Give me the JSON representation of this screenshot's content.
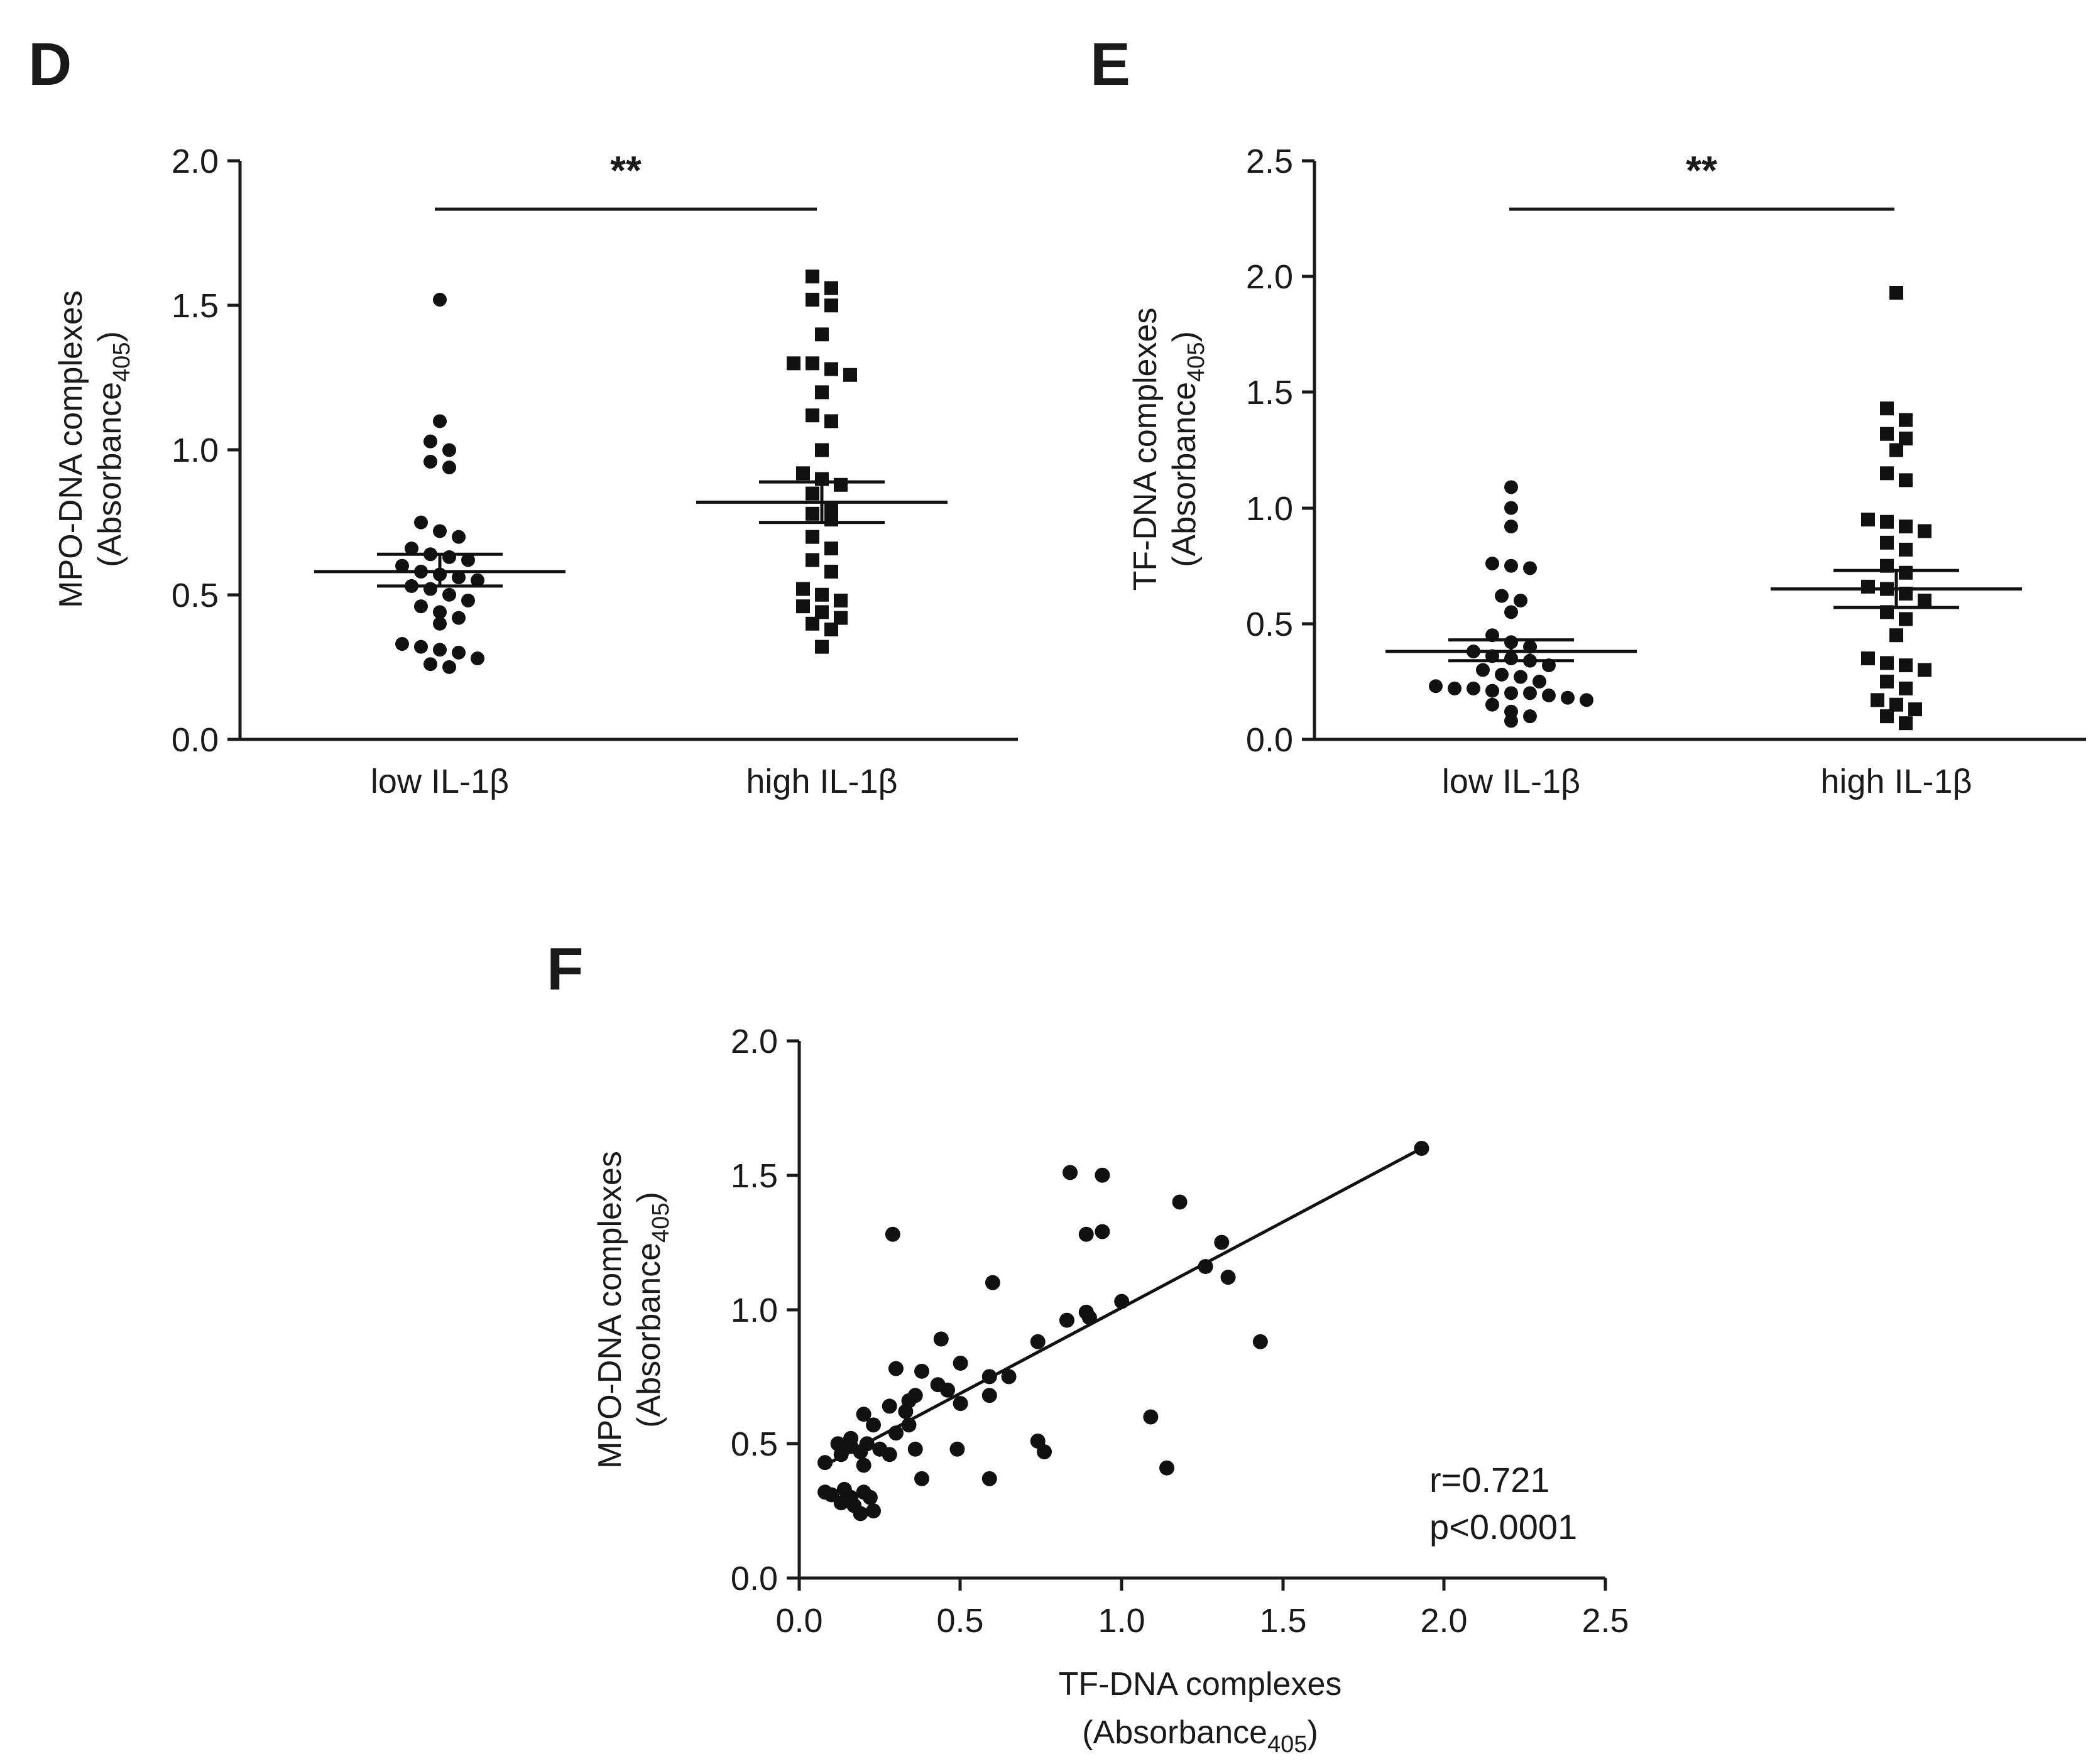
{
  "chart_data": [
    {
      "panel": "D",
      "type": "scatter",
      "subtype": "dot-plot-with-mean-sem",
      "title": "",
      "ylabel_line1": "MPO-DNA complexes",
      "ylabel_line2": "(Absorbance",
      "ylabel_sub": "405",
      "ylabel_close": ")",
      "ylim": [
        0,
        2.0
      ],
      "yticks": [
        "0.0",
        "0.5",
        "1.0",
        "1.5",
        "2.0"
      ],
      "categories": [
        "low IL-1β",
        "high IL-1β"
      ],
      "significance": "**",
      "series": [
        {
          "name": "low IL-1β",
          "marker": "circle",
          "values": [
            1.52,
            1.1,
            1.03,
            1.0,
            0.96,
            0.94,
            0.75,
            0.72,
            0.7,
            0.66,
            0.64,
            0.63,
            0.62,
            0.6,
            0.58,
            0.57,
            0.56,
            0.55,
            0.53,
            0.52,
            0.5,
            0.48,
            0.46,
            0.44,
            0.42,
            0.4,
            0.33,
            0.32,
            0.31,
            0.3,
            0.28,
            0.26,
            0.25
          ],
          "mean": 0.58,
          "sem_low": 0.53,
          "sem_high": 0.64
        },
        {
          "name": "high IL-1β",
          "marker": "square",
          "values": [
            1.6,
            1.56,
            1.52,
            1.5,
            1.4,
            1.3,
            1.3,
            1.28,
            1.26,
            1.2,
            1.12,
            1.1,
            1.0,
            0.92,
            0.9,
            0.88,
            0.85,
            0.8,
            0.78,
            0.76,
            0.7,
            0.66,
            0.62,
            0.58,
            0.52,
            0.5,
            0.48,
            0.46,
            0.44,
            0.42,
            0.4,
            0.38,
            0.32
          ],
          "mean": 0.82,
          "sem_low": 0.75,
          "sem_high": 0.89
        }
      ]
    },
    {
      "panel": "E",
      "type": "scatter",
      "subtype": "dot-plot-with-mean-sem",
      "title": "",
      "ylabel_line1": "TF-DNA complexes",
      "ylabel_line2": "(Absorbance",
      "ylabel_sub": "405",
      "ylabel_close": ")",
      "ylim": [
        0,
        2.5
      ],
      "yticks": [
        "0.0",
        "0.5",
        "1.0",
        "1.5",
        "2.0",
        "2.5"
      ],
      "categories": [
        "low IL-1β",
        "high IL-1β"
      ],
      "significance": "**",
      "series": [
        {
          "name": "low IL-1β",
          "marker": "circle",
          "values": [
            1.09,
            1.0,
            0.92,
            0.76,
            0.75,
            0.74,
            0.62,
            0.6,
            0.55,
            0.45,
            0.42,
            0.4,
            0.38,
            0.36,
            0.35,
            0.34,
            0.32,
            0.3,
            0.28,
            0.27,
            0.25,
            0.23,
            0.22,
            0.22,
            0.21,
            0.2,
            0.2,
            0.19,
            0.18,
            0.17,
            0.15,
            0.12,
            0.1,
            0.08
          ],
          "mean": 0.38,
          "sem_low": 0.34,
          "sem_high": 0.43
        },
        {
          "name": "high IL-1β",
          "marker": "square",
          "values": [
            1.93,
            1.43,
            1.38,
            1.32,
            1.3,
            1.25,
            1.15,
            1.12,
            0.95,
            0.94,
            0.92,
            0.9,
            0.85,
            0.82,
            0.75,
            0.72,
            0.66,
            0.65,
            0.63,
            0.6,
            0.55,
            0.52,
            0.45,
            0.35,
            0.33,
            0.32,
            0.3,
            0.25,
            0.22,
            0.17,
            0.15,
            0.13,
            0.1,
            0.07
          ],
          "mean": 0.65,
          "sem_low": 0.57,
          "sem_high": 0.73
        }
      ]
    },
    {
      "panel": "F",
      "type": "scatter",
      "title": "",
      "xlabel_line1": "TF-DNA complexes",
      "xlabel_line2": "(Absorbance",
      "xlabel_sub": "405",
      "xlabel_close": ")",
      "ylabel_line1": "MPO-DNA complexes",
      "ylabel_line2": "(Absorbance",
      "ylabel_sub": "405",
      "ylabel_close": ")",
      "xlim": [
        0,
        2.5
      ],
      "ylim": [
        0,
        2.0
      ],
      "xticks": [
        "0.0",
        "0.5",
        "1.0",
        "1.5",
        "2.0",
        "2.5"
      ],
      "yticks": [
        "0.0",
        "0.5",
        "1.0",
        "1.5",
        "2.0"
      ],
      "annotation_r": "r=0.721",
      "annotation_p": "p<0.0001",
      "fit_line": {
        "x": [
          0.08,
          1.93
        ],
        "y": [
          0.42,
          1.6
        ]
      },
      "points": [
        [
          1.93,
          1.6
        ],
        [
          0.84,
          1.51
        ],
        [
          0.94,
          1.5
        ],
        [
          1.18,
          1.4
        ],
        [
          0.29,
          1.28
        ],
        [
          0.89,
          1.28
        ],
        [
          0.94,
          1.29
        ],
        [
          1.31,
          1.25
        ],
        [
          1.26,
          1.16
        ],
        [
          1.33,
          1.12
        ],
        [
          0.6,
          1.1
        ],
        [
          1.0,
          1.03
        ],
        [
          0.89,
          0.99
        ],
        [
          0.9,
          0.97
        ],
        [
          0.83,
          0.96
        ],
        [
          1.43,
          0.88
        ],
        [
          0.74,
          0.88
        ],
        [
          0.44,
          0.89
        ],
        [
          0.5,
          0.8
        ],
        [
          0.3,
          0.78
        ],
        [
          0.38,
          0.77
        ],
        [
          0.59,
          0.75
        ],
        [
          0.65,
          0.75
        ],
        [
          0.43,
          0.72
        ],
        [
          0.46,
          0.7
        ],
        [
          0.36,
          0.68
        ],
        [
          0.59,
          0.68
        ],
        [
          0.34,
          0.66
        ],
        [
          0.5,
          0.65
        ],
        [
          0.28,
          0.64
        ],
        [
          0.33,
          0.62
        ],
        [
          0.2,
          0.61
        ],
        [
          1.09,
          0.6
        ],
        [
          0.23,
          0.57
        ],
        [
          0.34,
          0.57
        ],
        [
          0.3,
          0.54
        ],
        [
          0.16,
          0.52
        ],
        [
          0.12,
          0.5
        ],
        [
          0.21,
          0.5
        ],
        [
          0.74,
          0.51
        ],
        [
          0.16,
          0.49
        ],
        [
          0.25,
          0.48
        ],
        [
          0.36,
          0.48
        ],
        [
          0.49,
          0.48
        ],
        [
          0.76,
          0.47
        ],
        [
          0.19,
          0.47
        ],
        [
          0.13,
          0.46
        ],
        [
          0.28,
          0.46
        ],
        [
          0.08,
          0.43
        ],
        [
          0.2,
          0.42
        ],
        [
          1.14,
          0.41
        ],
        [
          0.38,
          0.37
        ],
        [
          0.59,
          0.37
        ],
        [
          0.14,
          0.33
        ],
        [
          0.08,
          0.32
        ],
        [
          0.2,
          0.32
        ],
        [
          0.1,
          0.31
        ],
        [
          0.16,
          0.3
        ],
        [
          0.22,
          0.3
        ],
        [
          0.13,
          0.28
        ],
        [
          0.17,
          0.27
        ],
        [
          0.23,
          0.25
        ],
        [
          0.19,
          0.24
        ]
      ]
    }
  ]
}
